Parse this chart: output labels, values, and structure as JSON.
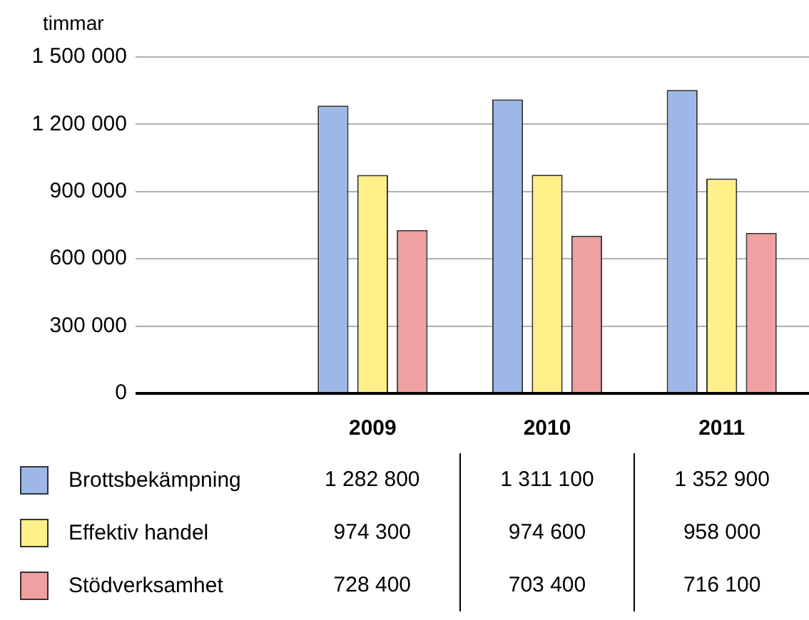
{
  "chart_data": {
    "type": "bar",
    "ylabel": "timmar",
    "categories": [
      "2009",
      "2010",
      "2011"
    ],
    "series": [
      {
        "name": "Brottsbekämpning",
        "color": "#9db8e6",
        "values": [
          1282800,
          1311100,
          1352900
        ],
        "value_labels": [
          "1 282 800",
          "1 311 100",
          "1 352 900"
        ]
      },
      {
        "name": "Effektiv handel",
        "color": "#fff08a",
        "values": [
          974300,
          974600,
          958000
        ],
        "value_labels": [
          "974 300",
          "974 600",
          "958 000"
        ]
      },
      {
        "name": "Stödverksamhet",
        "color": "#f0a0a0",
        "values": [
          728400,
          703400,
          716100
        ],
        "value_labels": [
          "728 400",
          "703 400",
          "716 100"
        ]
      }
    ],
    "ylim": [
      0,
      1500000
    ],
    "yticks": [
      {
        "value": 0,
        "label": "0"
      },
      {
        "value": 300000,
        "label": "300 000"
      },
      {
        "value": 600000,
        "label": "600 000"
      },
      {
        "value": 900000,
        "label": "900 000"
      },
      {
        "value": 1200000,
        "label": "1 200 000"
      },
      {
        "value": 1500000,
        "label": "1 500 000"
      }
    ],
    "grid": "y",
    "legend": "bottom"
  }
}
